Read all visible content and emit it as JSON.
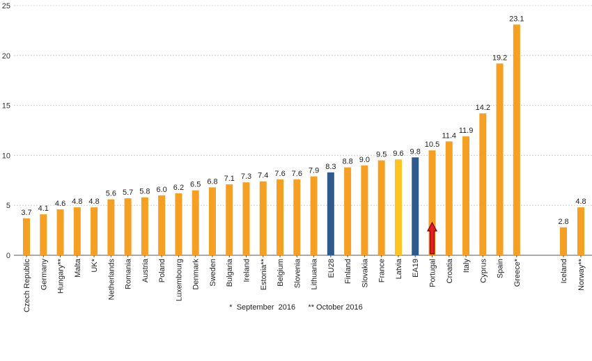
{
  "chart_data": {
    "type": "bar",
    "ylim": [
      0,
      25
    ],
    "yticks": [
      0,
      5,
      10,
      15,
      20,
      25
    ],
    "grid": true,
    "categories": [
      "Czech Republic",
      "Germany",
      "Hungary**",
      "Malta",
      "UK*",
      "Netherlands",
      "Romania",
      "Austria",
      "Poland",
      "Luxembourg",
      "Denmark",
      "Sweden",
      "Bulgaria",
      "Ireland",
      "Estonia**",
      "Belgium",
      "Slovenia",
      "Lithuania",
      "EU28",
      "Finland",
      "Slovakia",
      "France",
      "Latvia",
      "EA19",
      "Portugal",
      "Croatia",
      "Italy",
      "Cyprus",
      "Spain",
      "Greece*",
      "Iceland",
      "Norway**"
    ],
    "values": [
      3.7,
      4.1,
      4.6,
      4.8,
      4.8,
      5.6,
      5.7,
      5.8,
      6.0,
      6.2,
      6.5,
      6.8,
      7.1,
      7.3,
      7.4,
      7.6,
      7.6,
      7.9,
      8.3,
      8.8,
      9.0,
      9.5,
      9.6,
      9.8,
      10.5,
      11.4,
      11.9,
      14.2,
      19.2,
      23.1,
      2.8,
      4.8
    ],
    "value_labels": [
      "3.7",
      "4.1",
      "4.6",
      "4.8",
      "4.8",
      "5.6",
      "5.7",
      "5.8",
      "6.0",
      "6.2",
      "6.5",
      "6.8",
      "7.1",
      "7.3",
      "7.4",
      "7.6",
      "7.6",
      "7.9",
      "8.3",
      "8.8",
      "9.0",
      "9.5",
      "9.6",
      "9.8",
      "10.5",
      "11.4",
      "11.9",
      "14.2",
      "19.2",
      "23.1",
      "2.8",
      "4.8"
    ],
    "colors": {
      "default": "#f5a023",
      "aggregate": "#2e5a8e",
      "latvia": "#ffc41f",
      "arrow_fill": "#e02020",
      "arrow_stroke": "#7a0000",
      "axis": "#555555",
      "grid": "#d0d0d0"
    },
    "aggregate_categories": [
      "EU28",
      "EA19"
    ],
    "highlight_category": "Latvia",
    "arrow_category": "Portugal",
    "footnote": "*  September  2016      ** October 2016"
  }
}
